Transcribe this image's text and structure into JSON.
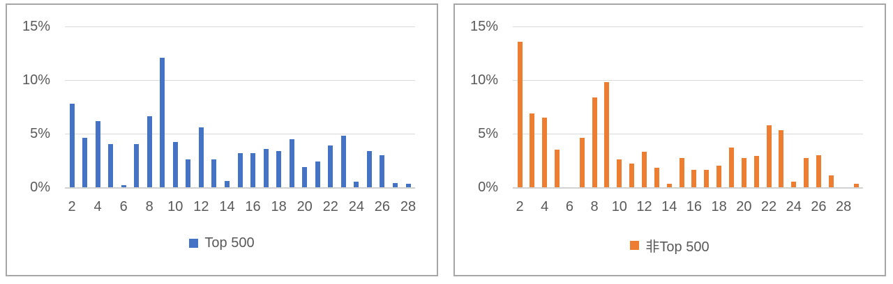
{
  "page": {
    "background": "#FFFFFF",
    "panel_border_color": "#A6A6A6",
    "gridline_color": "#D9D9D9",
    "axis_line_color": "#D2D2D2",
    "text_color": "#595959"
  },
  "chart_data": [
    {
      "type": "bar",
      "panel": "left",
      "title": "",
      "legend": "Top 500",
      "legend_position": "bottom",
      "color": "#4472C4",
      "grid": true,
      "ylim": [
        0,
        15
      ],
      "y_ticks": [
        0,
        5,
        10,
        15
      ],
      "y_tick_labels": [
        "0%",
        "5%",
        "10%",
        "15%"
      ],
      "x": [
        2,
        3,
        4,
        5,
        6,
        7,
        8,
        9,
        10,
        11,
        12,
        13,
        14,
        15,
        16,
        17,
        18,
        19,
        20,
        21,
        22,
        23,
        24,
        25,
        26,
        27,
        28
      ],
      "values": [
        7.8,
        4.6,
        6.2,
        4.0,
        0.2,
        4.0,
        6.6,
        12.1,
        4.2,
        2.6,
        5.6,
        2.6,
        0.6,
        3.2,
        3.2,
        3.6,
        3.4,
        4.5,
        1.9,
        2.4,
        3.9,
        4.8,
        0.5,
        3.4,
        3.0,
        0.4,
        0.3
      ],
      "x_tick_labels": [
        "2",
        "4",
        "6",
        "8",
        "10",
        "12",
        "14",
        "16",
        "18",
        "20",
        "22",
        "24",
        "26",
        "28"
      ]
    },
    {
      "type": "bar",
      "panel": "right",
      "title": "",
      "legend": "非Top 500",
      "legend_position": "bottom",
      "color": "#ED7D31",
      "grid": true,
      "ylim": [
        0,
        15
      ],
      "y_ticks": [
        0,
        5,
        10,
        15
      ],
      "y_tick_labels": [
        "0%",
        "5%",
        "10%",
        "15%"
      ],
      "x": [
        2,
        3,
        4,
        5,
        6,
        7,
        8,
        9,
        10,
        11,
        12,
        13,
        14,
        15,
        16,
        17,
        18,
        19,
        20,
        21,
        22,
        23,
        24,
        25,
        26,
        27,
        28,
        29
      ],
      "values": [
        13.6,
        6.9,
        6.5,
        3.5,
        0,
        4.6,
        8.4,
        9.8,
        2.6,
        2.2,
        3.3,
        1.8,
        0.3,
        2.7,
        1.6,
        1.6,
        2.0,
        3.7,
        2.7,
        2.9,
        5.8,
        5.3,
        0.5,
        2.7,
        3.0,
        1.1,
        0,
        0.3
      ],
      "x_tick_labels": [
        "2",
        "4",
        "6",
        "8",
        "10",
        "12",
        "14",
        "16",
        "18",
        "20",
        "22",
        "24",
        "26",
        "28"
      ]
    }
  ]
}
